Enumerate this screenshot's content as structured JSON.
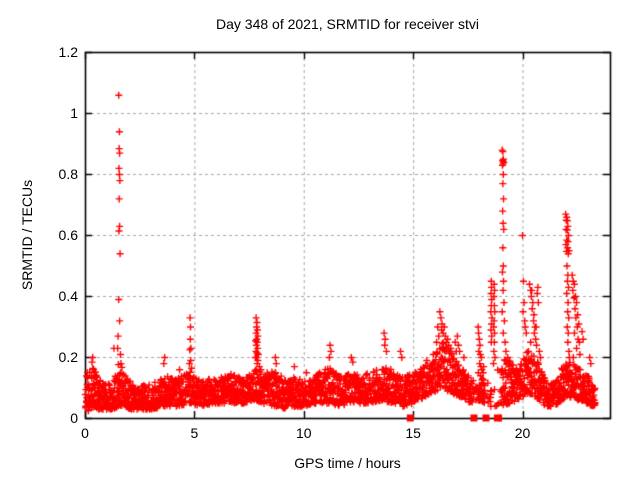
{
  "chart_data": {
    "type": "scatter",
    "title": "Day 348 of 2021, SRMTID for receiver stvi",
    "xlabel": "GPS time / hours",
    "ylabel": "SRMTID / TECUs",
    "xlim": [
      0,
      24
    ],
    "ylim": [
      0,
      1.2
    ],
    "xticks": {
      "values": [
        0,
        5,
        10,
        15,
        20
      ],
      "labels": [
        "0",
        "5",
        "10",
        "15",
        "20"
      ]
    },
    "yticks": {
      "values": [
        0,
        0.2,
        0.4,
        0.6,
        0.8,
        1,
        1.2
      ],
      "labels": [
        "0",
        "0.2",
        "0.4",
        "0.6",
        "0.8",
        "1",
        "1.2"
      ]
    },
    "grid": {
      "show": true,
      "style": "dashed",
      "color": "#a9a9a9"
    },
    "legend_position": "none",
    "marker": {
      "shape": "plus",
      "size": 7,
      "color": "#ff0000"
    },
    "frame_color": "#000000",
    "series": [
      {
        "name": "SRMTID",
        "color": "#ff0000",
        "points": [
          [
            1.52,
            1.06
          ],
          [
            1.55,
            0.94
          ],
          [
            1.54,
            0.885
          ],
          [
            1.56,
            0.87
          ],
          [
            1.53,
            0.82
          ],
          [
            1.55,
            0.8
          ],
          [
            1.57,
            0.78
          ],
          [
            1.54,
            0.72
          ],
          [
            1.56,
            0.63
          ],
          [
            1.53,
            0.615
          ],
          [
            1.58,
            0.54
          ],
          [
            1.52,
            0.39
          ],
          [
            1.56,
            0.32
          ],
          [
            1.49,
            0.27
          ],
          [
            1.47,
            0.23
          ],
          [
            1.6,
            0.21
          ],
          [
            1.62,
            0.18
          ],
          [
            4.78,
            0.33
          ],
          [
            4.8,
            0.3
          ],
          [
            4.79,
            0.26
          ],
          [
            4.82,
            0.23
          ],
          [
            4.77,
            0.225
          ],
          [
            4.81,
            0.19
          ],
          [
            4.75,
            0.18
          ],
          [
            4.85,
            0.165
          ],
          [
            3.62,
            0.2
          ],
          [
            3.58,
            0.18
          ],
          [
            4.3,
            0.16
          ],
          [
            7.8,
            0.33
          ],
          [
            7.84,
            0.315
          ],
          [
            7.82,
            0.3
          ],
          [
            7.86,
            0.29
          ],
          [
            7.8,
            0.28
          ],
          [
            7.88,
            0.27
          ],
          [
            7.83,
            0.26
          ],
          [
            7.78,
            0.255
          ],
          [
            7.85,
            0.25
          ],
          [
            7.81,
            0.24
          ],
          [
            7.87,
            0.23
          ],
          [
            7.79,
            0.22
          ],
          [
            7.84,
            0.215
          ],
          [
            7.9,
            0.21
          ],
          [
            7.82,
            0.2
          ],
          [
            7.76,
            0.2
          ],
          [
            7.88,
            0.19
          ],
          [
            7.85,
            0.18
          ],
          [
            7.95,
            0.17
          ],
          [
            8.02,
            0.16
          ],
          [
            0.33,
            0.2
          ],
          [
            0.3,
            0.185
          ],
          [
            1.3,
            0.23
          ],
          [
            8.68,
            0.2
          ],
          [
            8.72,
            0.18
          ],
          [
            9.55,
            0.17
          ],
          [
            10.1,
            0.15
          ],
          [
            11.18,
            0.24
          ],
          [
            11.22,
            0.22
          ],
          [
            11.15,
            0.2
          ],
          [
            12.15,
            0.2
          ],
          [
            12.22,
            0.185
          ],
          [
            13.65,
            0.28
          ],
          [
            13.7,
            0.26
          ],
          [
            13.68,
            0.24
          ],
          [
            13.76,
            0.22
          ],
          [
            14.4,
            0.22
          ],
          [
            14.46,
            0.2
          ],
          [
            15.6,
            0.19
          ],
          [
            15.9,
            0.21
          ],
          [
            16.1,
            0.3
          ],
          [
            16.2,
            0.35
          ],
          [
            16.25,
            0.33
          ],
          [
            16.3,
            0.31
          ],
          [
            16.28,
            0.29
          ],
          [
            16.35,
            0.28
          ],
          [
            16.4,
            0.3
          ],
          [
            16.45,
            0.27
          ],
          [
            16.5,
            0.25
          ],
          [
            16.55,
            0.26
          ],
          [
            16.6,
            0.24
          ],
          [
            16.15,
            0.27
          ],
          [
            16.05,
            0.25
          ],
          [
            16.7,
            0.23
          ],
          [
            16.9,
            0.25
          ],
          [
            17.0,
            0.27
          ],
          [
            17.05,
            0.24
          ],
          [
            17.1,
            0.22
          ],
          [
            16.95,
            0.22
          ],
          [
            17.3,
            0.2
          ],
          [
            17.95,
            0.3
          ],
          [
            17.97,
            0.28
          ],
          [
            18.0,
            0.26
          ],
          [
            18.03,
            0.24
          ],
          [
            17.98,
            0.22
          ],
          [
            18.05,
            0.21
          ],
          [
            18.1,
            0.2
          ],
          [
            18.02,
            0.18
          ],
          [
            18.08,
            0.17
          ],
          [
            18.12,
            0.16
          ],
          [
            17.96,
            0.15
          ],
          [
            18.06,
            0.14
          ],
          [
            18.15,
            0.13
          ],
          [
            18.18,
            0.15
          ],
          [
            18.2,
            0.17
          ],
          [
            18.55,
            0.45
          ],
          [
            18.56,
            0.43
          ],
          [
            18.54,
            0.41
          ],
          [
            18.57,
            0.39
          ],
          [
            18.55,
            0.37
          ],
          [
            18.53,
            0.35
          ],
          [
            18.58,
            0.33
          ],
          [
            18.56,
            0.31
          ],
          [
            18.54,
            0.29
          ],
          [
            18.57,
            0.27
          ],
          [
            18.55,
            0.25
          ],
          [
            18.68,
            0.44
          ],
          [
            18.7,
            0.42
          ],
          [
            18.67,
            0.4
          ],
          [
            18.69,
            0.37
          ],
          [
            18.71,
            0.35
          ],
          [
            18.68,
            0.32
          ],
          [
            18.66,
            0.3
          ],
          [
            18.7,
            0.28
          ],
          [
            18.69,
            0.25
          ],
          [
            18.67,
            0.22
          ],
          [
            18.72,
            0.2
          ],
          [
            18.65,
            0.18
          ],
          [
            19.05,
            0.88
          ],
          [
            19.08,
            0.875
          ],
          [
            19.1,
            0.85
          ],
          [
            19.07,
            0.845
          ],
          [
            19.12,
            0.84
          ],
          [
            19.09,
            0.835
          ],
          [
            19.06,
            0.83
          ],
          [
            19.1,
            0.8
          ],
          [
            19.08,
            0.77
          ],
          [
            19.11,
            0.72
          ],
          [
            19.07,
            0.68
          ],
          [
            19.09,
            0.64
          ],
          [
            19.12,
            0.62
          ],
          [
            19.08,
            0.56
          ],
          [
            19.1,
            0.5
          ],
          [
            19.06,
            0.48
          ],
          [
            19.11,
            0.45
          ],
          [
            19.09,
            0.42
          ],
          [
            19.13,
            0.38
          ],
          [
            19.05,
            0.35
          ],
          [
            19.15,
            0.32
          ],
          [
            19.1,
            0.28
          ],
          [
            19.18,
            0.25
          ],
          [
            19.22,
            0.22
          ],
          [
            19.3,
            0.2
          ],
          [
            19.35,
            0.18
          ],
          [
            19.98,
            0.6
          ],
          [
            20.02,
            0.45
          ],
          [
            20.05,
            0.38
          ],
          [
            20.0,
            0.35
          ],
          [
            20.08,
            0.32
          ],
          [
            20.1,
            0.3
          ],
          [
            20.15,
            0.28
          ],
          [
            20.3,
            0.44
          ],
          [
            20.35,
            0.42
          ],
          [
            20.4,
            0.42
          ],
          [
            20.38,
            0.4
          ],
          [
            20.45,
            0.38
          ],
          [
            20.42,
            0.36
          ],
          [
            20.5,
            0.34
          ],
          [
            20.48,
            0.32
          ],
          [
            20.55,
            0.3
          ],
          [
            20.52,
            0.28
          ],
          [
            20.6,
            0.3
          ],
          [
            20.58,
            0.26
          ],
          [
            20.62,
            0.24
          ],
          [
            20.65,
            0.41
          ],
          [
            20.68,
            0.43
          ],
          [
            20.7,
            0.38
          ],
          [
            20.35,
            0.25
          ],
          [
            20.25,
            0.22
          ],
          [
            20.75,
            0.22
          ],
          [
            20.8,
            0.2
          ],
          [
            21.95,
            0.67
          ],
          [
            22.0,
            0.66
          ],
          [
            21.98,
            0.65
          ],
          [
            22.03,
            0.648
          ],
          [
            22.05,
            0.63
          ],
          [
            21.97,
            0.62
          ],
          [
            22.02,
            0.618
          ],
          [
            22.08,
            0.6
          ],
          [
            22.0,
            0.585
          ],
          [
            22.06,
            0.58
          ],
          [
            21.96,
            0.57
          ],
          [
            22.04,
            0.56
          ],
          [
            22.1,
            0.55
          ],
          [
            21.99,
            0.548
          ],
          [
            22.07,
            0.54
          ],
          [
            22.01,
            0.5
          ],
          [
            22.05,
            0.47
          ],
          [
            22.03,
            0.45
          ],
          [
            22.08,
            0.43
          ],
          [
            22.0,
            0.41
          ],
          [
            22.06,
            0.38
          ],
          [
            22.04,
            0.35
          ],
          [
            22.09,
            0.33
          ],
          [
            22.02,
            0.3
          ],
          [
            22.07,
            0.28
          ],
          [
            22.05,
            0.25
          ],
          [
            22.1,
            0.22
          ],
          [
            22.12,
            0.2
          ],
          [
            22.25,
            0.47
          ],
          [
            22.3,
            0.45
          ],
          [
            22.35,
            0.44
          ],
          [
            22.28,
            0.42
          ],
          [
            22.4,
            0.4
          ],
          [
            22.33,
            0.395
          ],
          [
            22.45,
            0.38
          ],
          [
            22.38,
            0.36
          ],
          [
            22.5,
            0.34
          ],
          [
            22.42,
            0.33
          ],
          [
            22.55,
            0.31
          ],
          [
            22.48,
            0.3
          ],
          [
            22.35,
            0.28
          ],
          [
            22.52,
            0.26
          ],
          [
            22.58,
            0.25
          ],
          [
            22.45,
            0.23
          ],
          [
            22.6,
            0.21
          ],
          [
            22.3,
            0.2
          ],
          [
            22.7,
            0.285
          ],
          [
            22.75,
            0.26
          ],
          [
            23.05,
            0.2
          ],
          [
            23.1,
            0.18
          ]
        ]
      }
    ],
    "baseline_band": {
      "description": "dense noise band of plus markers",
      "points_per_hour": 110,
      "x_start": 0,
      "x_end": 23.3,
      "y_power": 1.35,
      "envelope": [
        [
          0.0,
          0.02,
          0.14
        ],
        [
          0.3,
          0.03,
          0.18
        ],
        [
          0.7,
          0.03,
          0.12
        ],
        [
          1.2,
          0.03,
          0.11
        ],
        [
          1.55,
          0.04,
          0.19
        ],
        [
          1.9,
          0.03,
          0.13
        ],
        [
          2.4,
          0.03,
          0.1
        ],
        [
          3.0,
          0.03,
          0.12
        ],
        [
          3.6,
          0.04,
          0.14
        ],
        [
          4.2,
          0.04,
          0.13
        ],
        [
          4.8,
          0.05,
          0.16
        ],
        [
          5.3,
          0.04,
          0.13
        ],
        [
          6.0,
          0.05,
          0.13
        ],
        [
          6.6,
          0.05,
          0.15
        ],
        [
          7.2,
          0.05,
          0.13
        ],
        [
          7.8,
          0.06,
          0.16
        ],
        [
          8.1,
          0.05,
          0.15
        ],
        [
          8.7,
          0.04,
          0.16
        ],
        [
          9.2,
          0.03,
          0.12
        ],
        [
          9.6,
          0.04,
          0.14
        ],
        [
          10.0,
          0.04,
          0.12
        ],
        [
          10.6,
          0.05,
          0.15
        ],
        [
          11.1,
          0.05,
          0.17
        ],
        [
          11.6,
          0.04,
          0.14
        ],
        [
          12.1,
          0.05,
          0.15
        ],
        [
          12.6,
          0.05,
          0.14
        ],
        [
          13.0,
          0.05,
          0.15
        ],
        [
          13.6,
          0.06,
          0.17
        ],
        [
          14.0,
          0.05,
          0.16
        ],
        [
          14.5,
          0.04,
          0.14
        ],
        [
          15.0,
          0.05,
          0.15
        ],
        [
          15.5,
          0.07,
          0.17
        ],
        [
          16.0,
          0.09,
          0.21
        ],
        [
          16.35,
          0.1,
          0.26
        ],
        [
          16.8,
          0.08,
          0.21
        ],
        [
          17.2,
          0.07,
          0.17
        ],
        [
          17.6,
          0.05,
          0.13
        ],
        [
          18.0,
          0.06,
          0.14
        ],
        [
          18.5,
          0.04,
          0.11
        ],
        [
          19.1,
          0.04,
          0.2
        ],
        [
          19.4,
          0.05,
          0.19
        ],
        [
          19.8,
          0.06,
          0.17
        ],
        [
          20.2,
          0.08,
          0.22
        ],
        [
          20.6,
          0.07,
          0.2
        ],
        [
          21.0,
          0.04,
          0.13
        ],
        [
          21.4,
          0.04,
          0.12
        ],
        [
          21.8,
          0.06,
          0.17
        ],
        [
          22.1,
          0.07,
          0.19
        ],
        [
          22.5,
          0.06,
          0.17
        ],
        [
          22.9,
          0.05,
          0.15
        ],
        [
          23.15,
          0.04,
          0.12
        ],
        [
          23.3,
          0.04,
          0.1
        ]
      ],
      "gaps": [
        [
          17.7,
          17.92,
          0.3
        ],
        [
          18.25,
          18.5,
          0.15
        ],
        [
          18.56,
          19.0,
          0.15
        ]
      ]
    },
    "zero_flag_markers": {
      "shape": "filled-square",
      "color": "#ff0000",
      "y": 0,
      "entries": [
        {
          "x": 14.87,
          "w": 7
        },
        {
          "x": 17.78,
          "w": 7
        },
        {
          "x": 18.33,
          "w": 7
        },
        {
          "x": 18.83,
          "w": 6
        },
        {
          "x": 18.95,
          "w": 2
        },
        {
          "x": 19.02,
          "w": 2
        }
      ]
    }
  }
}
